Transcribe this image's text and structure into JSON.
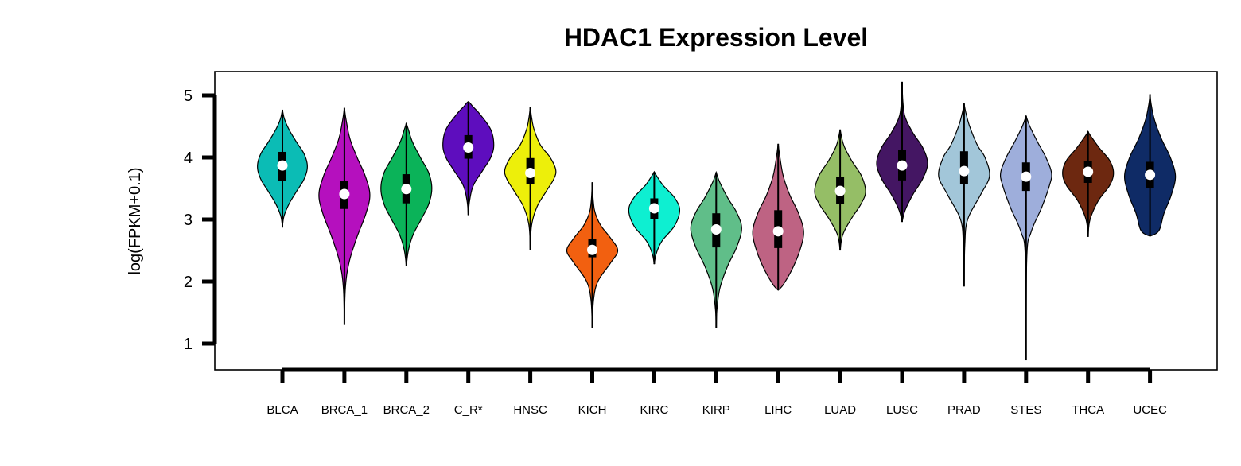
{
  "chart_data": {
    "type": "violin",
    "title": "HDAC1 Expression Level",
    "xlabel": "",
    "ylabel": "log(FPKM+0.1)",
    "ylim": [
      0.55,
      5.4
    ],
    "yticks": [
      1,
      2,
      3,
      4,
      5
    ],
    "grid": false,
    "categories": [
      "BLCA",
      "BRCA_1",
      "BRCA_2",
      "C_R*",
      "HNSC",
      "KICH",
      "KIRC",
      "KIRP",
      "LIHC",
      "LUAD",
      "LUSC",
      "PRAD",
      "STES",
      "THCA",
      "UCEC"
    ],
    "series": [
      {
        "color": "#0BBCB5",
        "min": 2.87,
        "max": 4.77,
        "q1": 3.62,
        "median": 3.87,
        "q3": 4.09,
        "profile": [
          [
            2.87,
            0
          ],
          [
            3.05,
            0.06
          ],
          [
            3.25,
            0.26
          ],
          [
            3.45,
            0.55
          ],
          [
            3.65,
            0.85
          ],
          [
            3.85,
            0.98
          ],
          [
            4.05,
            0.86
          ],
          [
            4.25,
            0.55
          ],
          [
            4.45,
            0.26
          ],
          [
            4.62,
            0.08
          ],
          [
            4.77,
            0
          ]
        ]
      },
      {
        "color": "#B510BE",
        "min": 1.3,
        "max": 4.8,
        "q1": 3.17,
        "median": 3.41,
        "q3": 3.62,
        "profile": [
          [
            1.3,
            0
          ],
          [
            1.9,
            0.04
          ],
          [
            2.3,
            0.18
          ],
          [
            2.7,
            0.48
          ],
          [
            3.1,
            0.85
          ],
          [
            3.4,
            1.0
          ],
          [
            3.7,
            0.82
          ],
          [
            4.0,
            0.5
          ],
          [
            4.3,
            0.22
          ],
          [
            4.6,
            0.07
          ],
          [
            4.8,
            0
          ]
        ]
      },
      {
        "color": "#0BB359",
        "min": 2.25,
        "max": 4.55,
        "q1": 3.26,
        "median": 3.49,
        "q3": 3.73,
        "profile": [
          [
            2.25,
            0
          ],
          [
            2.5,
            0.08
          ],
          [
            2.75,
            0.26
          ],
          [
            3.0,
            0.58
          ],
          [
            3.25,
            0.88
          ],
          [
            3.5,
            1.0
          ],
          [
            3.75,
            0.88
          ],
          [
            4.0,
            0.55
          ],
          [
            4.25,
            0.24
          ],
          [
            4.45,
            0.08
          ],
          [
            4.55,
            0
          ]
        ]
      },
      {
        "color": "#5E0DBE",
        "min": 3.07,
        "max": 4.9,
        "q1": 3.98,
        "median": 4.16,
        "q3": 4.36,
        "profile": [
          [
            3.07,
            0
          ],
          [
            3.3,
            0.05
          ],
          [
            3.55,
            0.2
          ],
          [
            3.8,
            0.58
          ],
          [
            4.0,
            0.88
          ],
          [
            4.2,
            1.0
          ],
          [
            4.45,
            0.88
          ],
          [
            4.7,
            0.45
          ],
          [
            4.82,
            0.18
          ],
          [
            4.88,
            0.06
          ],
          [
            4.9,
            0
          ]
        ]
      },
      {
        "color": "#EDEF0A",
        "min": 2.5,
        "max": 4.82,
        "q1": 3.57,
        "median": 3.75,
        "q3": 3.99,
        "profile": [
          [
            2.5,
            0
          ],
          [
            2.9,
            0.05
          ],
          [
            3.2,
            0.26
          ],
          [
            3.45,
            0.62
          ],
          [
            3.65,
            0.92
          ],
          [
            3.8,
            1.0
          ],
          [
            4.0,
            0.78
          ],
          [
            4.2,
            0.4
          ],
          [
            4.45,
            0.15
          ],
          [
            4.65,
            0.05
          ],
          [
            4.82,
            0
          ]
        ]
      },
      {
        "color": "#F26010",
        "min": 1.25,
        "max": 3.6,
        "q1": 2.39,
        "median": 2.51,
        "q3": 2.68,
        "profile": [
          [
            1.25,
            0
          ],
          [
            1.7,
            0.05
          ],
          [
            2.0,
            0.22
          ],
          [
            2.3,
            0.72
          ],
          [
            2.5,
            1.0
          ],
          [
            2.7,
            0.72
          ],
          [
            2.9,
            0.34
          ],
          [
            3.1,
            0.12
          ],
          [
            3.3,
            0.04
          ],
          [
            3.6,
            0
          ]
        ]
      },
      {
        "color": "#0EEFD1",
        "min": 2.28,
        "max": 3.77,
        "q1": 3.0,
        "median": 3.18,
        "q3": 3.34,
        "profile": [
          [
            2.28,
            0
          ],
          [
            2.45,
            0.08
          ],
          [
            2.65,
            0.3
          ],
          [
            2.9,
            0.8
          ],
          [
            3.15,
            1.0
          ],
          [
            3.35,
            0.8
          ],
          [
            3.55,
            0.35
          ],
          [
            3.7,
            0.1
          ],
          [
            3.77,
            0
          ]
        ]
      },
      {
        "color": "#60BE89",
        "min": 1.25,
        "max": 3.76,
        "q1": 2.55,
        "median": 2.84,
        "q3": 3.1,
        "profile": [
          [
            1.25,
            0
          ],
          [
            1.55,
            0.03
          ],
          [
            1.9,
            0.15
          ],
          [
            2.25,
            0.45
          ],
          [
            2.55,
            0.8
          ],
          [
            2.85,
            1.0
          ],
          [
            3.1,
            0.82
          ],
          [
            3.35,
            0.45
          ],
          [
            3.6,
            0.14
          ],
          [
            3.76,
            0
          ]
        ]
      },
      {
        "color": "#BE6383",
        "min": 1.86,
        "max": 4.22,
        "q1": 2.54,
        "median": 2.81,
        "q3": 3.15,
        "profile": [
          [
            1.86,
            0
          ],
          [
            1.95,
            0.2
          ],
          [
            2.2,
            0.55
          ],
          [
            2.5,
            0.85
          ],
          [
            2.8,
            1.0
          ],
          [
            3.1,
            0.8
          ],
          [
            3.4,
            0.45
          ],
          [
            3.7,
            0.2
          ],
          [
            4.0,
            0.07
          ],
          [
            4.22,
            0
          ]
        ]
      },
      {
        "color": "#95BE66",
        "min": 2.5,
        "max": 4.45,
        "q1": 3.25,
        "median": 3.46,
        "q3": 3.69,
        "profile": [
          [
            2.5,
            0
          ],
          [
            2.75,
            0.1
          ],
          [
            3.0,
            0.42
          ],
          [
            3.25,
            0.82
          ],
          [
            3.45,
            1.0
          ],
          [
            3.7,
            0.84
          ],
          [
            3.95,
            0.45
          ],
          [
            4.2,
            0.14
          ],
          [
            4.45,
            0
          ]
        ]
      },
      {
        "color": "#441663",
        "min": 2.96,
        "max": 5.22,
        "q1": 3.63,
        "median": 3.87,
        "q3": 4.12,
        "profile": [
          [
            2.96,
            0
          ],
          [
            3.15,
            0.12
          ],
          [
            3.4,
            0.42
          ],
          [
            3.65,
            0.8
          ],
          [
            3.9,
            1.0
          ],
          [
            4.15,
            0.82
          ],
          [
            4.4,
            0.42
          ],
          [
            4.65,
            0.12
          ],
          [
            4.9,
            0.03
          ],
          [
            5.22,
            0
          ]
        ]
      },
      {
        "color": "#A2C6D9",
        "min": 1.92,
        "max": 4.87,
        "q1": 3.57,
        "median": 3.78,
        "q3": 4.1,
        "profile": [
          [
            1.92,
            0
          ],
          [
            2.6,
            0.03
          ],
          [
            3.0,
            0.14
          ],
          [
            3.4,
            0.65
          ],
          [
            3.7,
            1.0
          ],
          [
            4.0,
            0.82
          ],
          [
            4.2,
            0.52
          ],
          [
            4.5,
            0.22
          ],
          [
            4.72,
            0.07
          ],
          [
            4.87,
            0
          ]
        ]
      },
      {
        "color": "#9EAEDB",
        "min": 0.73,
        "max": 4.67,
        "q1": 3.46,
        "median": 3.69,
        "q3": 3.92,
        "profile": [
          [
            0.73,
            0
          ],
          [
            2.4,
            0.03
          ],
          [
            2.8,
            0.2
          ],
          [
            3.2,
            0.62
          ],
          [
            3.55,
            0.92
          ],
          [
            3.75,
            1.0
          ],
          [
            4.0,
            0.78
          ],
          [
            4.25,
            0.45
          ],
          [
            4.5,
            0.15
          ],
          [
            4.67,
            0
          ]
        ]
      },
      {
        "color": "#6D2810",
        "min": 2.72,
        "max": 4.42,
        "q1": 3.59,
        "median": 3.77,
        "q3": 3.94,
        "profile": [
          [
            2.72,
            0
          ],
          [
            3.0,
            0.08
          ],
          [
            3.3,
            0.4
          ],
          [
            3.55,
            0.85
          ],
          [
            3.75,
            1.0
          ],
          [
            3.95,
            0.85
          ],
          [
            4.15,
            0.45
          ],
          [
            4.35,
            0.1
          ],
          [
            4.42,
            0
          ]
        ]
      },
      {
        "color": "#0F2B66",
        "min": 2.73,
        "max": 5.02,
        "q1": 3.5,
        "median": 3.72,
        "q3": 3.93,
        "profile": [
          [
            2.73,
            0
          ],
          [
            2.82,
            0.35
          ],
          [
            3.1,
            0.55
          ],
          [
            3.4,
            0.84
          ],
          [
            3.7,
            1.0
          ],
          [
            4.0,
            0.8
          ],
          [
            4.3,
            0.45
          ],
          [
            4.6,
            0.18
          ],
          [
            4.85,
            0.05
          ],
          [
            5.02,
            0
          ]
        ]
      }
    ]
  }
}
